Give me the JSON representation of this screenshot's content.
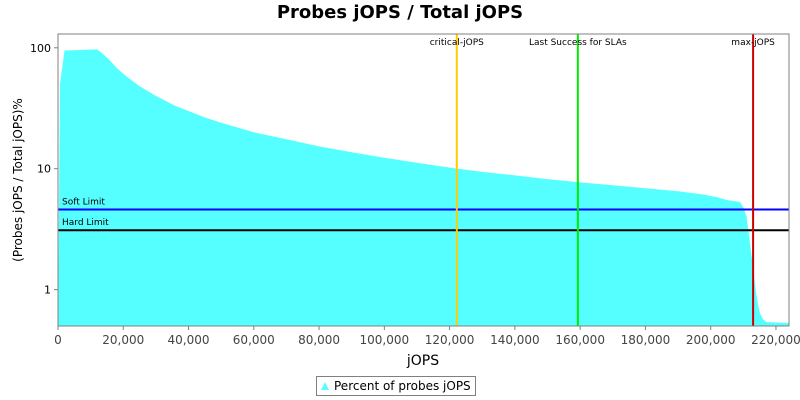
{
  "title": "Probes jOPS / Total jOPS",
  "legend": {
    "label": "Percent of probes jOPS",
    "color": "#55ffff"
  },
  "chart_data": {
    "type": "area",
    "title": "Probes jOPS / Total jOPS",
    "xlabel": "jOPS",
    "ylabel": "(Probes jOPS / Total jOPS)%",
    "xlim": [
      0,
      224000
    ],
    "ylim": [
      0.5,
      130
    ],
    "y_scale": "log",
    "x_ticks": [
      0,
      20000,
      40000,
      60000,
      80000,
      100000,
      120000,
      140000,
      160000,
      180000,
      200000,
      220000
    ],
    "x_tick_labels": [
      "0",
      "20,000",
      "40,000",
      "60,000",
      "80,000",
      "100,000",
      "120,000",
      "140,000",
      "160,000",
      "180,000",
      "200,000",
      "220,000"
    ],
    "y_ticks": [
      1,
      10,
      100
    ],
    "y_tick_labels": [
      "1",
      "10",
      "100"
    ],
    "grid": false,
    "series": [
      {
        "name": "Percent of probes jOPS",
        "color": "#55ffff",
        "x": [
          0,
          600,
          2000,
          12000,
          14000,
          16000,
          18000,
          21000,
          25000,
          30000,
          36000,
          40000,
          45000,
          50000,
          60000,
          70000,
          80000,
          90000,
          100000,
          110000,
          120000,
          130000,
          140000,
          150000,
          160000,
          170000,
          180000,
          190000,
          198000,
          202000,
          205000,
          207000,
          209000,
          210000,
          211000,
          212000,
          213000,
          214000,
          215000,
          216000,
          217000,
          222000,
          224000
        ],
        "y": [
          0.5,
          50,
          95,
          97,
          88,
          78,
          68,
          58,
          48,
          40,
          33,
          30,
          26.5,
          24,
          20,
          17.5,
          15.3,
          13.7,
          12.3,
          11.2,
          10.2,
          9.4,
          8.8,
          8.2,
          7.7,
          7.3,
          6.9,
          6.5,
          6.1,
          5.8,
          5.5,
          5.4,
          5.3,
          4.8,
          4.0,
          2.5,
          1.5,
          0.9,
          0.65,
          0.57,
          0.54,
          0.53,
          0.53
        ]
      }
    ],
    "vertical_markers": [
      {
        "label": "critical-jOPS",
        "x": 122200,
        "color": "#ffcc00"
      },
      {
        "label": "Last Success for SLAs",
        "x": 159300,
        "color": "#00ee00"
      },
      {
        "label": "max-jOPS",
        "x": 213000,
        "color": "#cc0000"
      }
    ],
    "horizontal_markers": [
      {
        "label": "Soft Limit",
        "y": 4.6,
        "color": "#0000ff"
      },
      {
        "label": "Hard Limit",
        "y": 3.1,
        "color": "#000000"
      }
    ]
  }
}
